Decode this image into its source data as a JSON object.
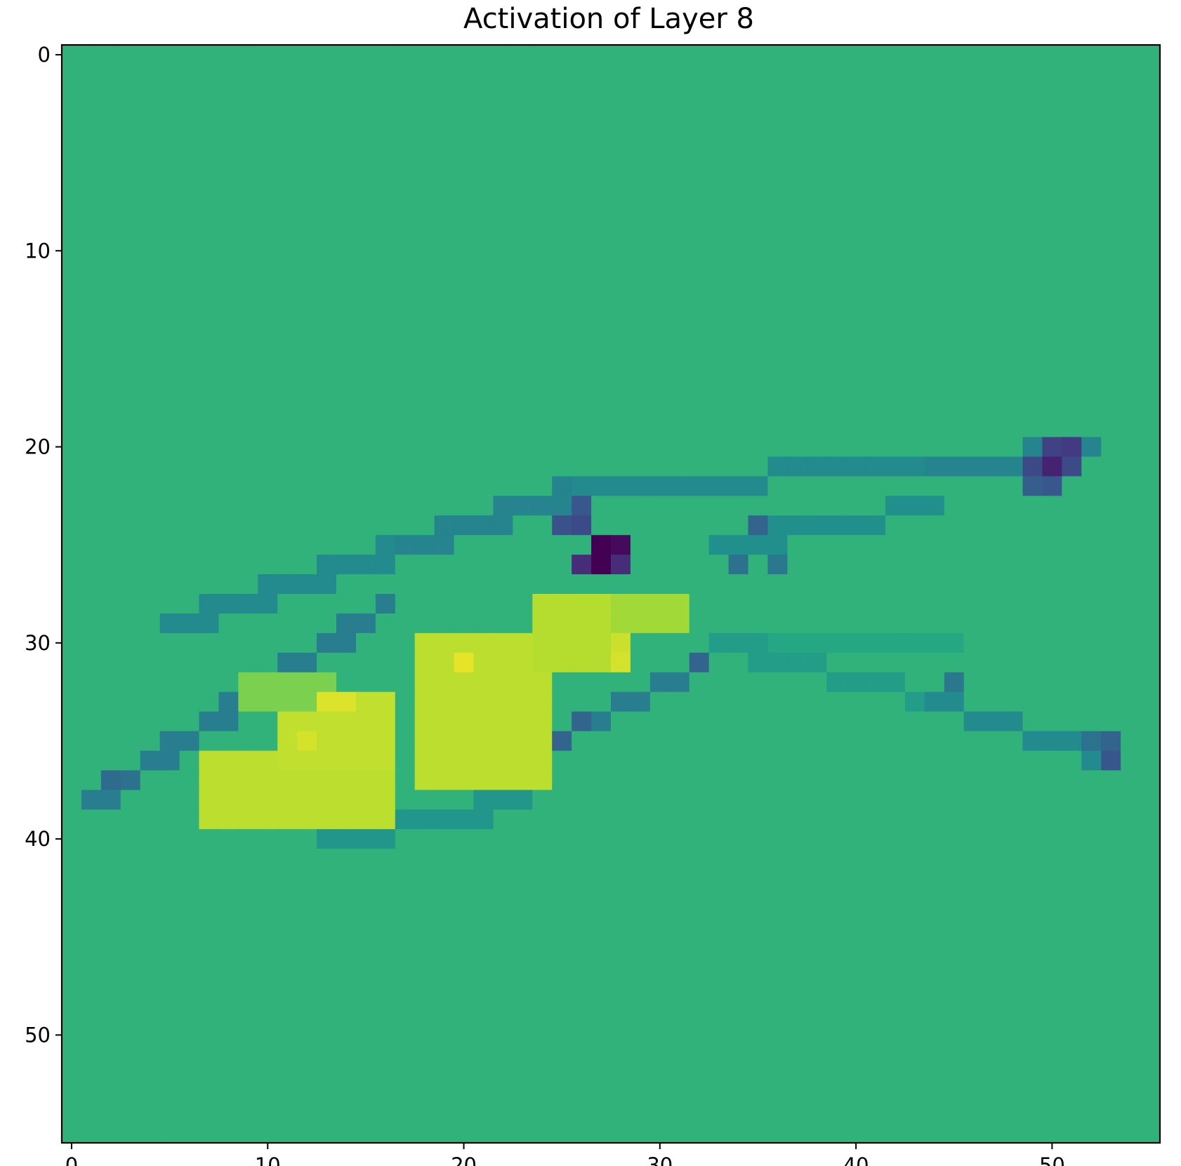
{
  "chart_data": {
    "type": "heatmap",
    "title": "Activation of Layer 8",
    "xlabel": "",
    "ylabel": "",
    "rows": 56,
    "cols": 56,
    "x_ticks": [
      "0",
      "10",
      "20",
      "30",
      "40",
      "50"
    ],
    "y_ticks": [
      "0",
      "10",
      "20",
      "30",
      "40",
      "50"
    ],
    "x_tick_values": [
      0,
      10,
      20,
      30,
      40,
      50
    ],
    "y_tick_values": [
      0,
      10,
      20,
      30,
      40,
      50
    ],
    "colormap": "viridis",
    "value_range": [
      -1.0,
      1.0
    ],
    "background_value": 0.3,
    "grid": false,
    "colorbar": false,
    "features": [
      {
        "shape": "line",
        "from": [
          1,
          38
        ],
        "to": [
          16,
          28
        ],
        "value": -0.15,
        "width": 1
      },
      {
        "shape": "line",
        "from": [
          5,
          29
        ],
        "to": [
          17,
          25
        ],
        "value": -0.05,
        "width": 1
      },
      {
        "shape": "line",
        "from": [
          17,
          25
        ],
        "to": [
          26,
          22
        ],
        "value": -0.1,
        "width": 1
      },
      {
        "shape": "line",
        "from": [
          26,
          22
        ],
        "to": [
          44,
          21
        ],
        "value": -0.05,
        "width": 1
      },
      {
        "shape": "line",
        "from": [
          44,
          21
        ],
        "to": [
          52,
          20
        ],
        "value": -0.1,
        "width": 1
      },
      {
        "shape": "line",
        "from": [
          33,
          25
        ],
        "to": [
          44,
          23
        ],
        "value": 0.0,
        "width": 1
      },
      {
        "shape": "line",
        "from": [
          13,
          40
        ],
        "to": [
          23,
          38
        ],
        "value": 0.05,
        "width": 1
      },
      {
        "shape": "line",
        "from": [
          20,
          37
        ],
        "to": [
          32,
          31
        ],
        "value": -0.15,
        "width": 1
      },
      {
        "shape": "line",
        "from": [
          33,
          30
        ],
        "to": [
          44,
          33
        ],
        "value": 0.1,
        "width": 1
      },
      {
        "shape": "line",
        "from": [
          44,
          33
        ],
        "to": [
          53,
          36
        ],
        "value": -0.05,
        "width": 1
      },
      {
        "shape": "line",
        "from": [
          36,
          30
        ],
        "to": [
          45,
          30
        ],
        "value": 0.2,
        "width": 1
      },
      {
        "shape": "rect",
        "x": [
          7,
          16
        ],
        "y": [
          36,
          39
        ],
        "value": 0.8
      },
      {
        "shape": "rect",
        "x": [
          11,
          16
        ],
        "y": [
          33,
          36
        ],
        "value": 0.82
      },
      {
        "shape": "rect",
        "x": [
          18,
          24
        ],
        "y": [
          30,
          37
        ],
        "value": 0.8
      },
      {
        "shape": "rect",
        "x": [
          24,
          28
        ],
        "y": [
          28,
          31
        ],
        "value": 0.78
      },
      {
        "shape": "rect",
        "x": [
          28,
          31
        ],
        "y": [
          28,
          29
        ],
        "value": 0.72
      },
      {
        "shape": "rect",
        "x": [
          9,
          13
        ],
        "y": [
          32,
          33
        ],
        "value": 0.6
      },
      {
        "shape": "point",
        "x": 20,
        "y": 31,
        "value": 0.93
      },
      {
        "shape": "point",
        "x": 13,
        "y": 33,
        "value": 0.9
      },
      {
        "shape": "point",
        "x": 14,
        "y": 33,
        "value": 0.9
      },
      {
        "shape": "point",
        "x": 12,
        "y": 35,
        "value": 0.88
      },
      {
        "shape": "point",
        "x": 28,
        "y": 31,
        "value": 0.88
      },
      {
        "shape": "point",
        "x": 28,
        "y": 30,
        "value": 0.85
      },
      {
        "shape": "point",
        "x": 27,
        "y": 25,
        "value": -1.0
      },
      {
        "shape": "point",
        "x": 27,
        "y": 26,
        "value": -1.0
      },
      {
        "shape": "point",
        "x": 28,
        "y": 25,
        "value": -0.95
      },
      {
        "shape": "point",
        "x": 26,
        "y": 26,
        "value": -0.75
      },
      {
        "shape": "point",
        "x": 28,
        "y": 26,
        "value": -0.75
      },
      {
        "shape": "point",
        "x": 26,
        "y": 24,
        "value": -0.55
      },
      {
        "shape": "point",
        "x": 25,
        "y": 24,
        "value": -0.5
      },
      {
        "shape": "point",
        "x": 26,
        "y": 23,
        "value": -0.45
      },
      {
        "shape": "point",
        "x": 50,
        "y": 21,
        "value": -0.8
      },
      {
        "shape": "point",
        "x": 50,
        "y": 20,
        "value": -0.6
      },
      {
        "shape": "point",
        "x": 51,
        "y": 20,
        "value": -0.65
      },
      {
        "shape": "point",
        "x": 49,
        "y": 21,
        "value": -0.55
      },
      {
        "shape": "point",
        "x": 51,
        "y": 21,
        "value": -0.55
      },
      {
        "shape": "point",
        "x": 49,
        "y": 22,
        "value": -0.4
      },
      {
        "shape": "point",
        "x": 50,
        "y": 22,
        "value": -0.45
      },
      {
        "shape": "point",
        "x": 53,
        "y": 36,
        "value": -0.45
      },
      {
        "shape": "point",
        "x": 53,
        "y": 35,
        "value": -0.35
      },
      {
        "shape": "point",
        "x": 52,
        "y": 35,
        "value": -0.25
      },
      {
        "shape": "point",
        "x": 35,
        "y": 24,
        "value": -0.35
      },
      {
        "shape": "point",
        "x": 32,
        "y": 31,
        "value": -0.35
      },
      {
        "shape": "point",
        "x": 26,
        "y": 34,
        "value": -0.35
      },
      {
        "shape": "point",
        "x": 25,
        "y": 35,
        "value": -0.35
      },
      {
        "shape": "point",
        "x": 2,
        "y": 37,
        "value": -0.3
      },
      {
        "shape": "point",
        "x": 3,
        "y": 37,
        "value": -0.25
      },
      {
        "shape": "point",
        "x": 45,
        "y": 32,
        "value": -0.2
      },
      {
        "shape": "point",
        "x": 34,
        "y": 26,
        "value": -0.25
      },
      {
        "shape": "point",
        "x": 36,
        "y": 26,
        "value": -0.2
      }
    ]
  }
}
